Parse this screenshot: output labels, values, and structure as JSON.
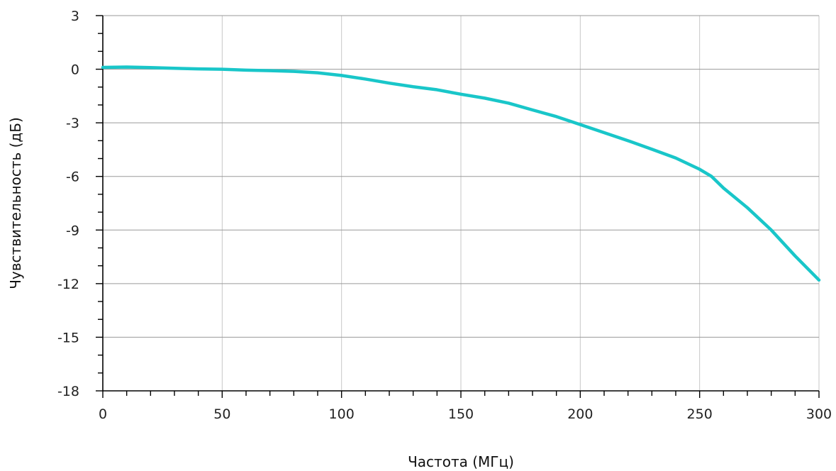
{
  "chart_data": {
    "type": "line",
    "title": "",
    "xlabel": "Частота (МГц)",
    "ylabel": "Чувствительность (дБ)",
    "xlim": [
      0,
      300
    ],
    "ylim": [
      -18,
      3
    ],
    "x_ticks": [
      0,
      50,
      100,
      150,
      200,
      250,
      300
    ],
    "y_ticks": [
      3,
      0,
      -3,
      -6,
      -9,
      -12,
      -15,
      -18
    ],
    "x_tick_labels": [
      "0",
      "50",
      "100",
      "150",
      "200",
      "250",
      "300"
    ],
    "y_tick_labels": [
      "3",
      "0",
      "-3",
      "-6",
      "-9",
      "-12",
      "-15",
      "-18"
    ],
    "grid": true,
    "legend": "none",
    "series": [
      {
        "color": "#19c6c9",
        "x": [
          0,
          10,
          20,
          30,
          40,
          50,
          60,
          70,
          80,
          90,
          100,
          110,
          120,
          130,
          140,
          150,
          160,
          170,
          180,
          190,
          200,
          210,
          220,
          230,
          240,
          250,
          255,
          260,
          270,
          280,
          290,
          300
        ],
        "y": [
          0.1,
          0.12,
          0.09,
          0.05,
          0.02,
          0.0,
          -0.05,
          -0.08,
          -0.12,
          -0.2,
          -0.35,
          -0.55,
          -0.78,
          -0.98,
          -1.15,
          -1.4,
          -1.62,
          -1.9,
          -2.28,
          -2.65,
          -3.1,
          -3.55,
          -4.0,
          -4.48,
          -4.97,
          -5.6,
          -6.0,
          -6.65,
          -7.75,
          -9.0,
          -10.45,
          -11.8
        ]
      }
    ]
  }
}
